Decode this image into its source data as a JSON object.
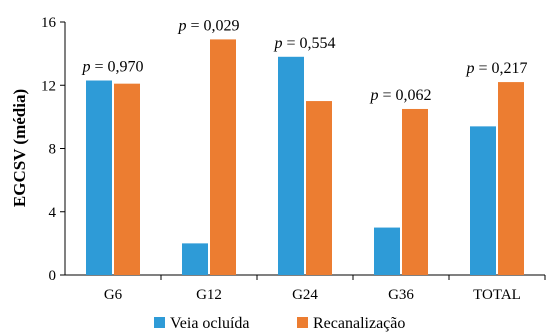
{
  "chart_data": {
    "type": "bar",
    "ylabel": "EGCSV (média)",
    "xlabel": "",
    "ylim": [
      0,
      16
    ],
    "yticks": [
      0,
      4,
      8,
      12,
      16
    ],
    "grid": false,
    "legend_position": "bottom",
    "categories": [
      "G6",
      "G12",
      "G24",
      "G36",
      "TOTAL"
    ],
    "series": [
      {
        "name": "Veia ocluída",
        "color": "#2e9bd7",
        "values": [
          12.3,
          2.0,
          13.8,
          3.0,
          9.4
        ]
      },
      {
        "name": "Recanalização",
        "color": "#ec7d31",
        "values": [
          12.1,
          14.9,
          11.0,
          10.5,
          12.2
        ]
      }
    ],
    "annotations": [
      {
        "category": "G6",
        "label": "p = 0,970"
      },
      {
        "category": "G12",
        "label": "p = 0,029"
      },
      {
        "category": "G24",
        "label": "p = 0,554"
      },
      {
        "category": "G36",
        "label": "p = 0,062"
      },
      {
        "category": "TOTAL",
        "label": "p = 0,217"
      }
    ]
  }
}
